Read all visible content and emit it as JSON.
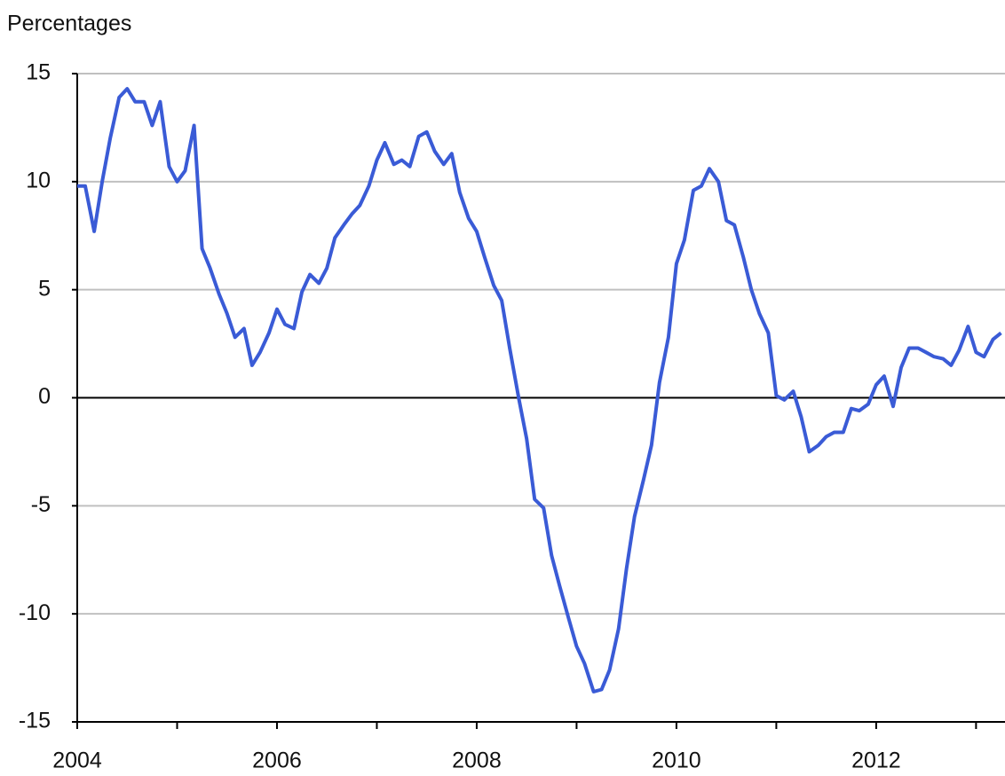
{
  "chart_data": {
    "type": "line",
    "y_axis_label": "Percentages",
    "x": [
      2004,
      2004.08,
      2004.17,
      2004.25,
      2004.33,
      2004.42,
      2004.5,
      2004.58,
      2004.67,
      2004.75,
      2004.83,
      2004.92,
      2005,
      2005.08,
      2005.17,
      2005.25,
      2005.33,
      2005.42,
      2005.5,
      2005.58,
      2005.67,
      2005.75,
      2005.83,
      2005.92,
      2006,
      2006.08,
      2006.17,
      2006.25,
      2006.33,
      2006.42,
      2006.5,
      2006.58,
      2006.67,
      2006.75,
      2006.83,
      2006.92,
      2007,
      2007.08,
      2007.17,
      2007.25,
      2007.33,
      2007.42,
      2007.5,
      2007.58,
      2007.67,
      2007.75,
      2007.83,
      2007.92,
      2008,
      2008.08,
      2008.17,
      2008.25,
      2008.33,
      2008.42,
      2008.5,
      2008.58,
      2008.67,
      2008.75,
      2008.83,
      2008.92,
      2009,
      2009.08,
      2009.17,
      2009.25,
      2009.33,
      2009.42,
      2009.5,
      2009.58,
      2009.67,
      2009.75,
      2009.83,
      2009.92,
      2010,
      2010.08,
      2010.17,
      2010.25,
      2010.33,
      2010.42,
      2010.5,
      2010.58,
      2010.67,
      2010.75,
      2010.83,
      2010.92,
      2011,
      2011.08,
      2011.17,
      2011.25,
      2011.33,
      2011.42,
      2011.5,
      2011.58,
      2011.67,
      2011.75,
      2011.83,
      2011.92,
      2012,
      2012.08,
      2012.17,
      2012.25,
      2012.33,
      2012.42,
      2012.5,
      2012.58,
      2012.67,
      2012.75,
      2012.83,
      2012.92,
      2013,
      2013.08,
      2013.17,
      2013.25
    ],
    "series": [
      {
        "color": "#3a5bd6",
        "values": [
          9.8,
          9.8,
          7.7,
          10.0,
          12.0,
          13.9,
          14.3,
          13.7,
          13.7,
          12.6,
          13.7,
          10.7,
          10.0,
          10.5,
          12.6,
          6.9,
          6.0,
          4.8,
          3.9,
          2.8,
          3.2,
          1.5,
          2.1,
          3.0,
          4.1,
          3.4,
          3.2,
          4.9,
          5.7,
          5.3,
          6.0,
          7.4,
          8.0,
          8.5,
          8.9,
          9.8,
          11.0,
          11.8,
          10.8,
          11.0,
          10.7,
          12.1,
          12.3,
          11.4,
          10.8,
          11.3,
          9.5,
          8.3,
          7.7,
          6.5,
          5.2,
          4.5,
          2.3,
          0.0,
          -1.9,
          -4.7,
          -5.1,
          -7.3,
          -8.7,
          -10.2,
          -11.5,
          -12.3,
          -13.6,
          -13.5,
          -12.6,
          -10.7,
          -7.9,
          -5.5,
          -3.8,
          -2.2,
          0.7,
          2.8,
          6.2,
          7.3,
          9.6,
          9.8,
          10.6,
          10.0,
          8.2,
          8.0,
          6.5,
          5.0,
          3.9,
          3.0,
          0.1,
          -0.1,
          0.3,
          -0.9,
          -2.5,
          -2.2,
          -1.8,
          -1.6,
          -1.6,
          -0.5,
          -0.6,
          -0.3,
          0.6,
          1.0,
          -0.4,
          1.4,
          2.3,
          2.3,
          2.1,
          1.9,
          1.8,
          1.5,
          2.2,
          3.3,
          2.1,
          1.9,
          2.7,
          3.0
        ]
      }
    ],
    "xlim": [
      2004,
      2013.29
    ],
    "xticks": [
      2004,
      2006,
      2008,
      2010,
      2012
    ],
    "x_minor_ticks": [
      2005,
      2007,
      2009,
      2011,
      2013
    ],
    "ylim": [
      -15,
      15
    ],
    "yticks": [
      -15,
      -10,
      -5,
      0,
      5,
      10,
      15
    ],
    "grid": true
  }
}
